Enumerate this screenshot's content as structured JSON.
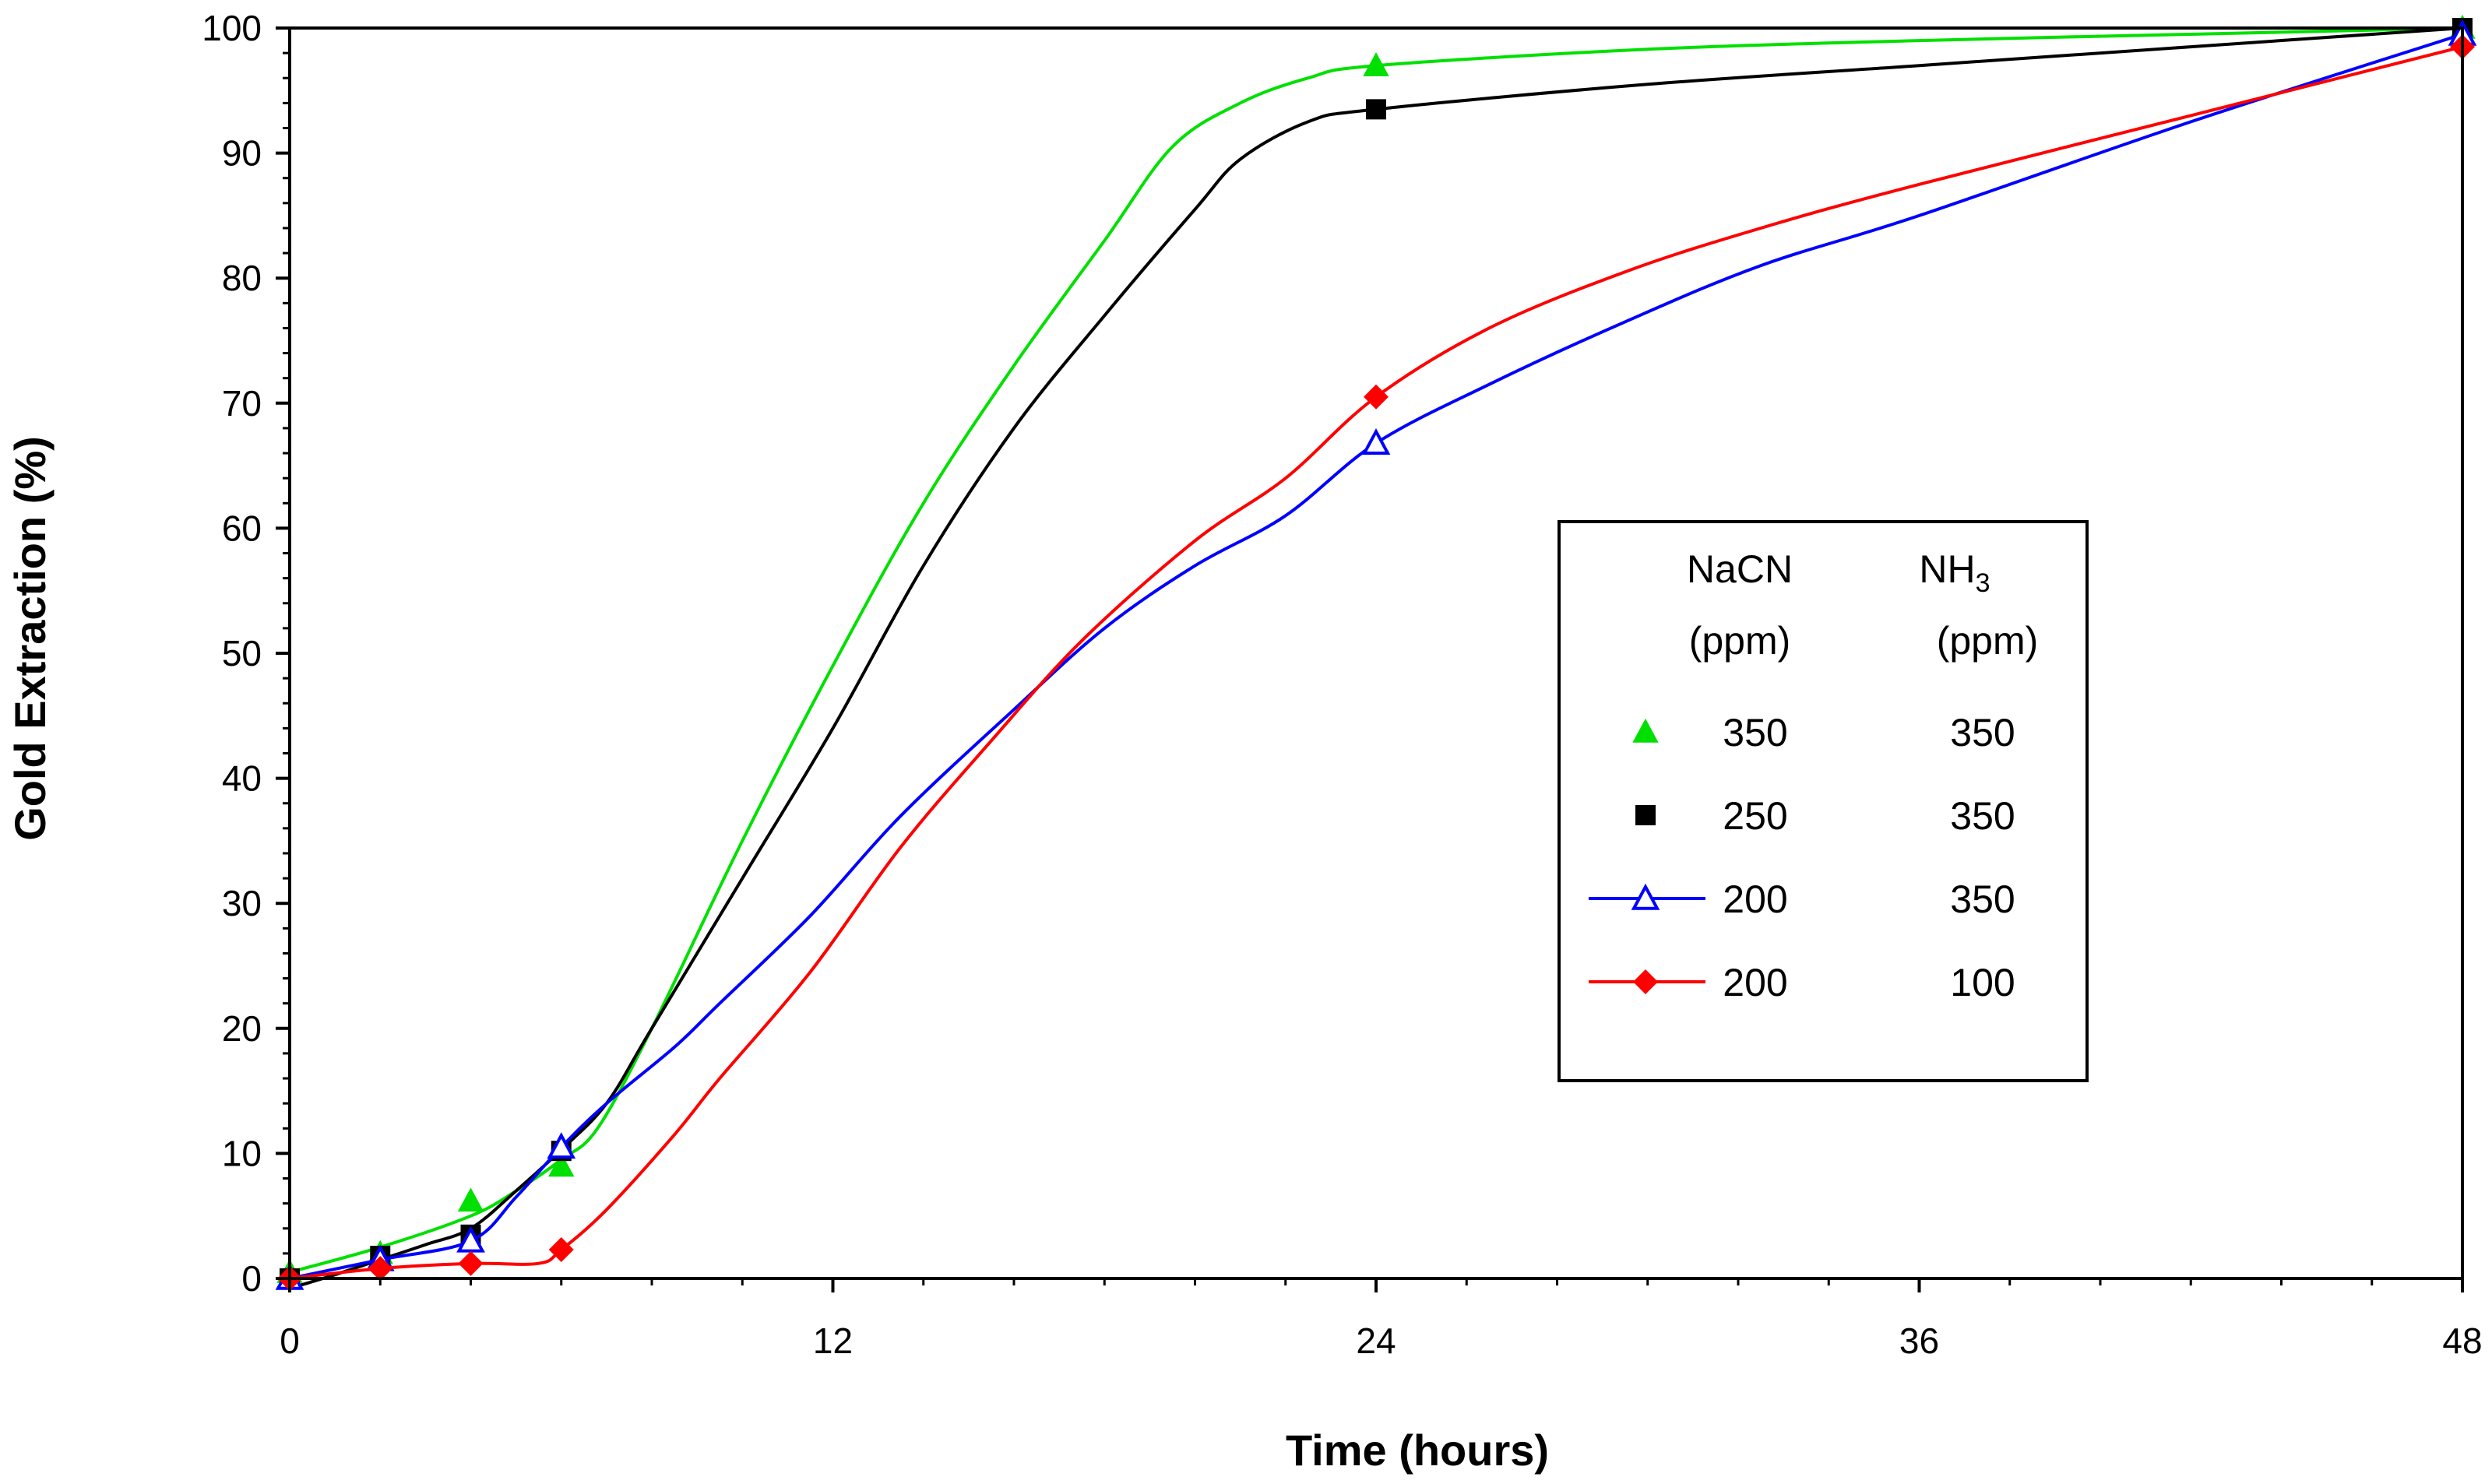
{
  "chart_data": {
    "type": "line",
    "xlabel": "Time (hours)",
    "ylabel": "Gold Extraction (%)",
    "xlim": [
      0,
      48
    ],
    "ylim": [
      0,
      100
    ],
    "x_ticks": [
      0,
      12,
      24,
      36,
      48
    ],
    "y_ticks": [
      0,
      10,
      20,
      30,
      40,
      50,
      60,
      70,
      80,
      90,
      100
    ],
    "legend": {
      "position": "right-middle",
      "header": {
        "col1_line1": "NaCN",
        "col1_line2": "(ppm)",
        "col2_main": "NH",
        "col2_sub": "3",
        "col2_line2": "(ppm)"
      }
    },
    "series": [
      {
        "name": "NaCN 350 / NH3 350",
        "nacn": "350",
        "nh3": "350",
        "color": "#00e000",
        "marker": "triangle-filled",
        "show_legend_line": false,
        "x": [
          0,
          2,
          4,
          6,
          24,
          48
        ],
        "values": [
          0.5,
          2,
          6.2,
          9,
          97,
          100
        ],
        "curve": [
          [
            0,
            0.5
          ],
          [
            2,
            2.5
          ],
          [
            4,
            5
          ],
          [
            5,
            7
          ],
          [
            6,
            9.5
          ],
          [
            6.8,
            12
          ],
          [
            8,
            20
          ],
          [
            10,
            35
          ],
          [
            12,
            49
          ],
          [
            14,
            62
          ],
          [
            16,
            73
          ],
          [
            18,
            83
          ],
          [
            19.5,
            90.5
          ],
          [
            21,
            94
          ],
          [
            22.5,
            96
          ],
          [
            24,
            97
          ],
          [
            30,
            98.3
          ],
          [
            36,
            99
          ],
          [
            42,
            99.5
          ],
          [
            48,
            100
          ]
        ]
      },
      {
        "name": "NaCN 250 / NH3 350",
        "nacn": "250",
        "nh3": "350",
        "color": "#000000",
        "marker": "square-filled",
        "show_legend_line": false,
        "x": [
          0,
          2,
          4,
          6,
          24,
          48
        ],
        "values": [
          0,
          1.8,
          3.5,
          10.2,
          93.5,
          100
        ],
        "curve": [
          [
            0,
            -0.8
          ],
          [
            1,
            0.3
          ],
          [
            2,
            1.5
          ],
          [
            3,
            2.7
          ],
          [
            4,
            4
          ],
          [
            5,
            7
          ],
          [
            6,
            10.3
          ],
          [
            7,
            14
          ],
          [
            8,
            20
          ],
          [
            10,
            32
          ],
          [
            12,
            44
          ],
          [
            14,
            57
          ],
          [
            16,
            68
          ],
          [
            18,
            77
          ],
          [
            20,
            85.5
          ],
          [
            21,
            89.5
          ],
          [
            22.5,
            92.5
          ],
          [
            24,
            93.5
          ],
          [
            30,
            95.5
          ],
          [
            36,
            97
          ],
          [
            42,
            98.5
          ],
          [
            48,
            100
          ]
        ]
      },
      {
        "name": "NaCN 200 / NH3 350",
        "nacn": "200",
        "nh3": "350",
        "color": "#0000ff",
        "marker": "triangle-open",
        "show_legend_line": true,
        "x": [
          0,
          2,
          4,
          6,
          24,
          48
        ],
        "values": [
          0,
          1.5,
          3,
          10.5,
          66.8,
          99.5
        ],
        "curve": [
          [
            0,
            0
          ],
          [
            2,
            1.5
          ],
          [
            4,
            3
          ],
          [
            5,
            6.5
          ],
          [
            6,
            10.5
          ],
          [
            7,
            14
          ],
          [
            8.5,
            18.5
          ],
          [
            9.5,
            22
          ],
          [
            11.5,
            29
          ],
          [
            13.5,
            37
          ],
          [
            16,
            45.5
          ],
          [
            18,
            52
          ],
          [
            20,
            57
          ],
          [
            22,
            61
          ],
          [
            24,
            66.8
          ],
          [
            26.5,
            71.5
          ],
          [
            29.5,
            76.5
          ],
          [
            32.5,
            81
          ],
          [
            36,
            85
          ],
          [
            42,
            92.5
          ],
          [
            48,
            99.5
          ]
        ]
      },
      {
        "name": "NaCN 200 / NH3 100",
        "nacn": "200",
        "nh3": "100",
        "color": "#ff0000",
        "marker": "diamond-filled",
        "show_legend_line": true,
        "x": [
          0,
          2,
          4,
          6,
          24,
          48
        ],
        "values": [
          0,
          0.8,
          1.2,
          2.3,
          70.5,
          98.5
        ],
        "curve": [
          [
            0,
            0
          ],
          [
            2,
            0.8
          ],
          [
            4,
            1.2
          ],
          [
            5.5,
            1.2
          ],
          [
            6,
            2.3
          ],
          [
            7,
            5.5
          ],
          [
            8.5,
            11.5
          ],
          [
            9.5,
            16
          ],
          [
            11.5,
            24.5
          ],
          [
            13.5,
            34.5
          ],
          [
            15.5,
            43
          ],
          [
            17.5,
            51
          ],
          [
            20,
            59
          ],
          [
            22,
            64
          ],
          [
            24,
            70.5
          ],
          [
            26.5,
            76
          ],
          [
            29.5,
            80.5
          ],
          [
            32.5,
            84
          ],
          [
            36,
            87.5
          ],
          [
            42,
            93
          ],
          [
            48,
            98.5
          ]
        ]
      }
    ]
  }
}
